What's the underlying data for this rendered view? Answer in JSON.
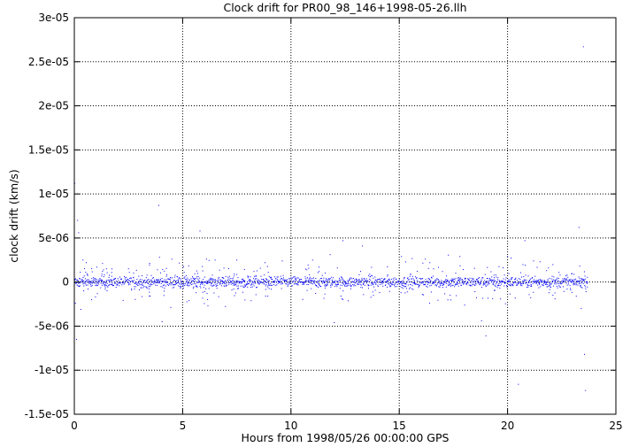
{
  "chart_data": {
    "type": "scatter",
    "title": "Clock drift for PR00_98_146+1998-05-26.llh",
    "xlabel": "Hours from 1998/05/26 00:00:00 GPS",
    "ylabel": "clock drift (km/s)",
    "xlim": [
      0,
      25
    ],
    "ylim": [
      -1.5e-05,
      3e-05
    ],
    "x_ticks": [
      0,
      5,
      10,
      15,
      20,
      25
    ],
    "x_tick_labels": [
      "0",
      "5",
      "10",
      "15",
      "20",
      "25"
    ],
    "y_ticks": [
      -1.5e-05,
      -1e-05,
      -5e-06,
      0,
      5e-06,
      1e-05,
      1.5e-05,
      2e-05,
      2.5e-05,
      3e-05
    ],
    "y_tick_labels": [
      "-1.5e-05",
      "-1e-05",
      "-5e-06",
      "0",
      "5e-06",
      "1e-05",
      "1.5e-05",
      "2e-05",
      "2.5e-05",
      "3e-05"
    ],
    "grid": true,
    "grid_style": "dotted",
    "marker_color": "#0000ff",
    "series": [
      {
        "name": "",
        "x_range": [
          0,
          23.7
        ],
        "description_values": "dense scatter of ~1 s samples centered near 0",
        "outliers": [
          {
            "x": 0.02,
            "y": 1.12e-05
          },
          {
            "x": 0.05,
            "y": -2.4e-06
          },
          {
            "x": 0.1,
            "y": -6.5e-06
          },
          {
            "x": 0.15,
            "y": 7e-06
          },
          {
            "x": 0.2,
            "y": 5.6e-06
          },
          {
            "x": 0.3,
            "y": -3.1e-06
          },
          {
            "x": 0.4,
            "y": 2.5e-06
          },
          {
            "x": 0.55,
            "y": 2.2e-06
          },
          {
            "x": 0.8,
            "y": -2e-06
          },
          {
            "x": 1.3,
            "y": 1.2e-06
          },
          {
            "x": 2.5,
            "y": 1.5e-06
          },
          {
            "x": 3.5,
            "y": -1.6e-06
          },
          {
            "x": 3.9,
            "y": 8.7e-06
          },
          {
            "x": 4.05,
            "y": -4.5e-06
          },
          {
            "x": 4.5,
            "y": 2.6e-06
          },
          {
            "x": 5.3,
            "y": -2.1e-06
          },
          {
            "x": 5.8,
            "y": 5.8e-06
          },
          {
            "x": 6.1,
            "y": 2.6e-06
          },
          {
            "x": 6.5,
            "y": 2.5e-06
          },
          {
            "x": 7.5,
            "y": 2.5e-06
          },
          {
            "x": 8.8,
            "y": 2.2e-06
          },
          {
            "x": 9.6,
            "y": 2.4e-06
          },
          {
            "x": 11.0,
            "y": 2.5e-06
          },
          {
            "x": 11.3,
            "y": 1.2e-06
          },
          {
            "x": 12.0,
            "y": -4.6e-06
          },
          {
            "x": 12.4,
            "y": 4.7e-06
          },
          {
            "x": 13.3,
            "y": 4.1e-06
          },
          {
            "x": 15.1,
            "y": 2.9e-06
          },
          {
            "x": 16.2,
            "y": 2.6e-06
          },
          {
            "x": 16.4,
            "y": -2.4e-06
          },
          {
            "x": 17.8,
            "y": 2.9e-06
          },
          {
            "x": 18.8,
            "y": -4.4e-06
          },
          {
            "x": 19.0,
            "y": -6.1e-06
          },
          {
            "x": 20.0,
            "y": 2.9e-06
          },
          {
            "x": 20.5,
            "y": -1.16e-05
          },
          {
            "x": 20.8,
            "y": 4.7e-06
          },
          {
            "x": 21.2,
            "y": 2.4e-06
          },
          {
            "x": 21.5,
            "y": 2.3e-06
          },
          {
            "x": 21.8,
            "y": 1.3e-06
          },
          {
            "x": 23.3,
            "y": 6.2e-06
          },
          {
            "x": 23.4,
            "y": -3e-06
          },
          {
            "x": 23.5,
            "y": 2.67e-05
          },
          {
            "x": 23.55,
            "y": -8.2e-06
          },
          {
            "x": 23.6,
            "y": -1.23e-05
          }
        ]
      }
    ]
  }
}
